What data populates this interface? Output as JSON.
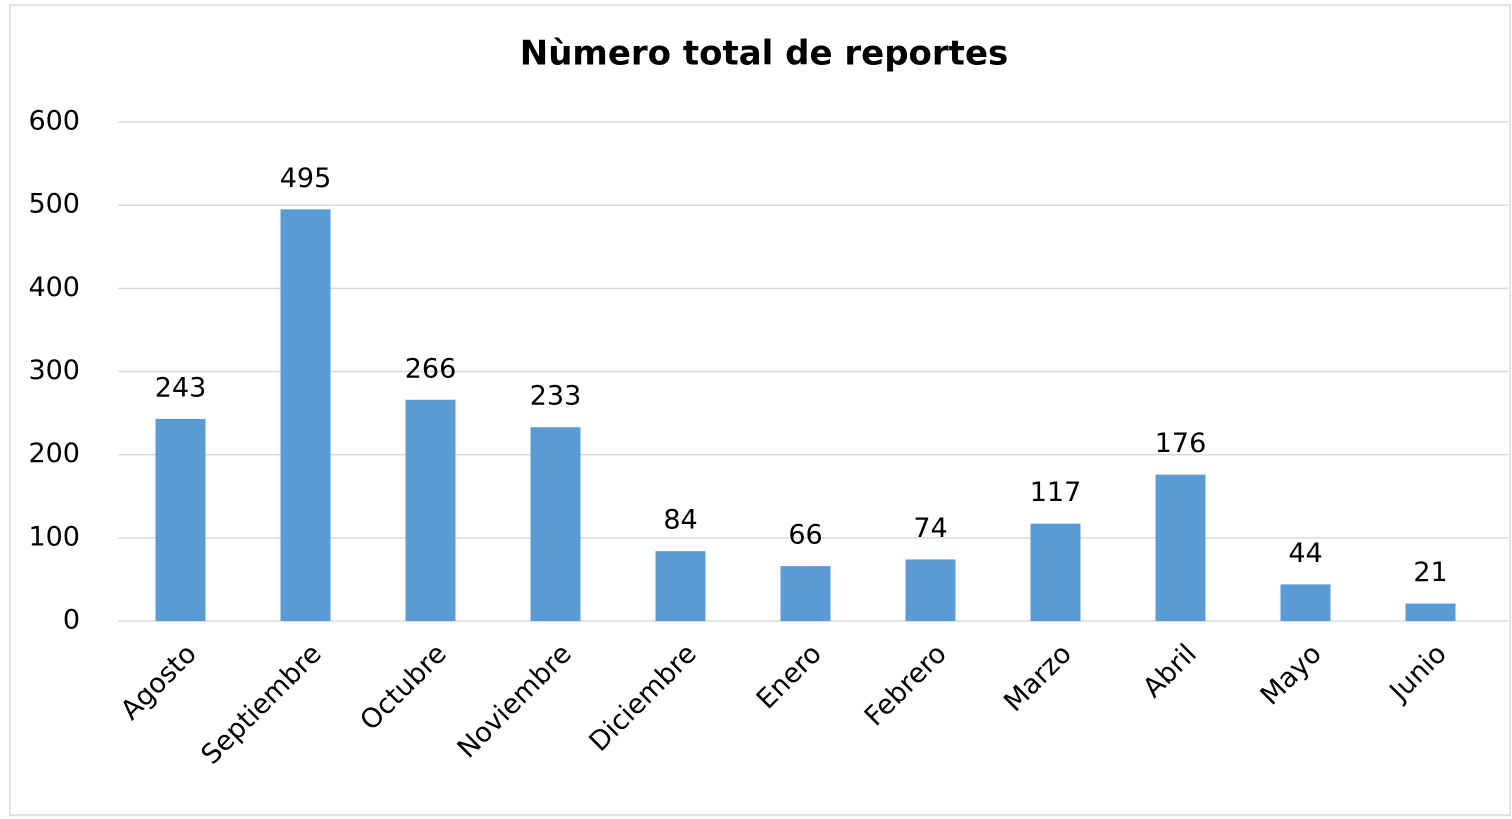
{
  "chart_data": {
    "type": "bar",
    "title": "Nùmero total de reportes",
    "categories": [
      "Agosto",
      "Septiembre",
      "Octubre",
      "Noviembre",
      "Diciembre",
      "Enero",
      "Febrero",
      "Marzo",
      "Abril",
      "Mayo",
      "Junio"
    ],
    "values": [
      243,
      495,
      266,
      233,
      84,
      66,
      74,
      117,
      176,
      44,
      21
    ],
    "color": "#5b9bd5",
    "ylim": [
      0,
      600
    ],
    "yticks": [
      0,
      100,
      200,
      300,
      400,
      500,
      600
    ],
    "grid": true
  }
}
